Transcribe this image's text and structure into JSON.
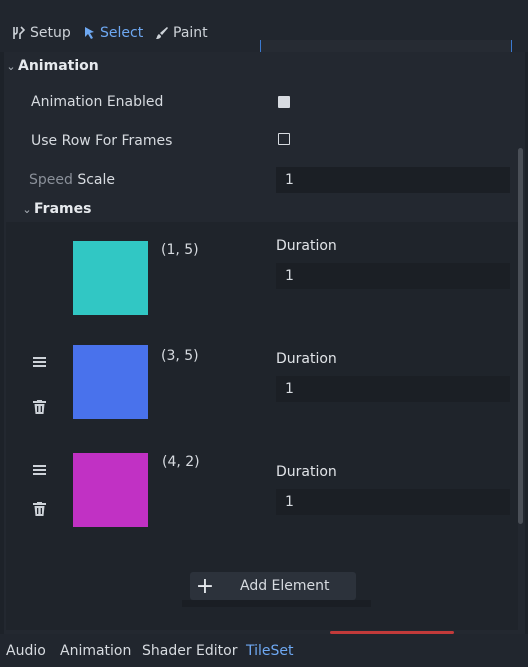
{
  "toolbar": {
    "setup_label": "Setup",
    "select_label": "Select",
    "paint_label": "Paint"
  },
  "inspector": {
    "animation_section": "Animation",
    "animation_enabled_label": "Animation Enabled",
    "animation_enabled": true,
    "use_row_for_frames_label": "Use Row For Frames",
    "use_row_for_frames": false,
    "speed_scale_label_prefix": "Speed",
    "speed_scale_label": "Scale",
    "speed_scale_value": "1",
    "frames_section": "Frames",
    "frames": [
      {
        "coords": "(1, 5)",
        "duration_label": "Duration",
        "duration": "1",
        "color": "#31c7c4",
        "has_controls": false
      },
      {
        "coords": "(3, 5)",
        "duration_label": "Duration",
        "duration": "1",
        "color": "#4972ec",
        "has_controls": true
      },
      {
        "coords": "(4, 2)",
        "duration_label": "Duration",
        "duration": "1",
        "color": "#c131c4",
        "has_controls": true
      }
    ],
    "add_element_label": "Add Element"
  },
  "bottom_tabs": {
    "audio": "Audio",
    "animation": "Animation",
    "shader_editor": "Shader Editor",
    "tileset": "TileSet"
  },
  "colors": {
    "accent": "#6ea8f2",
    "background": "#1d2229",
    "panel": "#232830"
  }
}
